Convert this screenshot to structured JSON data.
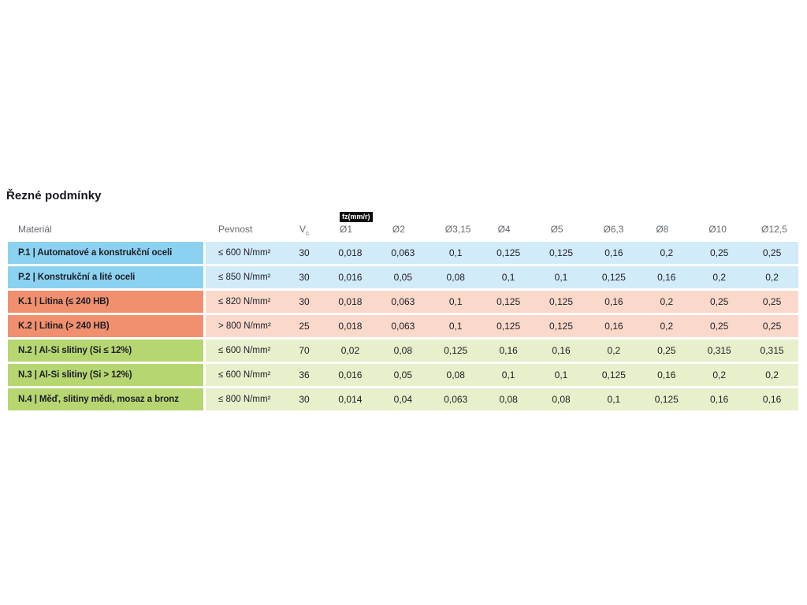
{
  "title": "Řezné podmínky",
  "table": {
    "headers": {
      "material": "Materiál",
      "pevnost": "Pevnost",
      "vc_main": "V",
      "vc_sub": "c"
    },
    "fz_badge": "fz(mm/r)",
    "diameter_headers": [
      "Ø1",
      "Ø2",
      "Ø3,15",
      "Ø4",
      "Ø5",
      "Ø6,3",
      "Ø8",
      "Ø10",
      "Ø12,5"
    ],
    "rows": [
      {
        "group": "P",
        "material": "P.1 | Automatové a konstrukční oceli",
        "pevnost": "≤ 600 N/mm²",
        "vc": "30",
        "values": [
          "0,018",
          "0,063",
          "0,1",
          "0,125",
          "0,125",
          "0,16",
          "0,2",
          "0,25",
          "0,25"
        ]
      },
      {
        "group": "P",
        "material": "P.2 | Konstrukční a lité oceli",
        "pevnost": "≤ 850 N/mm²",
        "vc": "30",
        "values": [
          "0,016",
          "0,05",
          "0,08",
          "0,1",
          "0,1",
          "0,125",
          "0,16",
          "0,2",
          "0,2"
        ]
      },
      {
        "group": "K",
        "material": "K.1 | Litina (≤ 240 HB)",
        "pevnost": "≤ 820 N/mm²",
        "vc": "30",
        "values": [
          "0,018",
          "0,063",
          "0,1",
          "0,125",
          "0,125",
          "0,16",
          "0,2",
          "0,25",
          "0,25"
        ]
      },
      {
        "group": "K",
        "material": "K.2 | Litina (> 240 HB)",
        "pevnost": "> 800 N/mm²",
        "vc": "25",
        "values": [
          "0,018",
          "0,063",
          "0,1",
          "0,125",
          "0,125",
          "0,16",
          "0,2",
          "0,25",
          "0,25"
        ]
      },
      {
        "group": "N",
        "material": "N.2 | Al-Si slitiny (Si ≤ 12%)",
        "pevnost": "≤ 600 N/mm²",
        "vc": "70",
        "values": [
          "0,02",
          "0,08",
          "0,125",
          "0,16",
          "0,16",
          "0,2",
          "0,25",
          "0,315",
          "0,315"
        ]
      },
      {
        "group": "N",
        "material": "N.3 | Al-Si slitiny (Si > 12%)",
        "pevnost": "≤ 600 N/mm²",
        "vc": "36",
        "values": [
          "0,016",
          "0,05",
          "0,08",
          "0,1",
          "0,1",
          "0,125",
          "0,16",
          "0,2",
          "0,2"
        ]
      },
      {
        "group": "N",
        "material": "N.4 | Měď, slitiny mědi, mosaz a bronz",
        "pevnost": "≤ 800 N/mm²",
        "vc": "30",
        "values": [
          "0,014",
          "0,04",
          "0,063",
          "0,08",
          "0,08",
          "0,1",
          "0,125",
          "0,16",
          "0,16"
        ]
      }
    ]
  },
  "colors": {
    "group_P_strong": "#8BD2F0",
    "group_P_light": "#D2EBF8",
    "group_K_strong": "#F1906E",
    "group_K_light": "#FAD9CB",
    "group_N_strong": "#B5D671",
    "group_N_light": "#E7F0CA",
    "badge_bg": "#0E0E0E",
    "badge_text": "#FFFFFF",
    "header_text": "#666A6E",
    "body_text": "#1D1D26"
  }
}
